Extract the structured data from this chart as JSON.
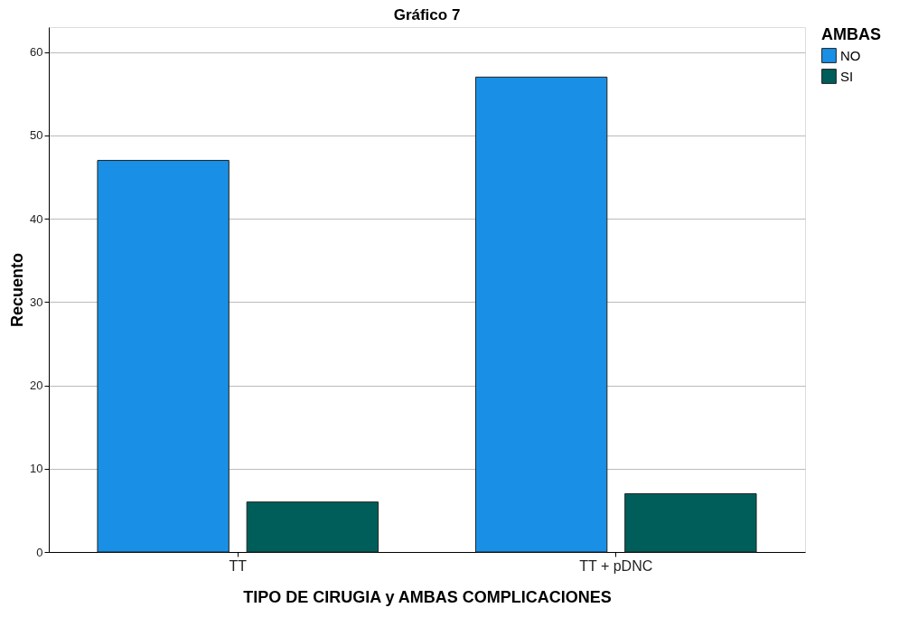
{
  "chart_data": {
    "type": "bar",
    "title": "Gráfico 7",
    "xlabel": "TIPO DE CIRUGIA y AMBAS COMPLICACIONES",
    "ylabel": "Recuento",
    "legend_title": "AMBAS",
    "categories": [
      "TT",
      "TT + pDNC"
    ],
    "series": [
      {
        "name": "NO",
        "color": "#1990e6",
        "values": [
          47,
          57
        ]
      },
      {
        "name": "SI",
        "color": "#005e5a",
        "values": [
          6,
          7
        ]
      }
    ],
    "ylim": [
      0,
      63
    ],
    "yticks": [
      0,
      10,
      20,
      30,
      40,
      50,
      60
    ],
    "grid": "y",
    "legend": "top right"
  }
}
